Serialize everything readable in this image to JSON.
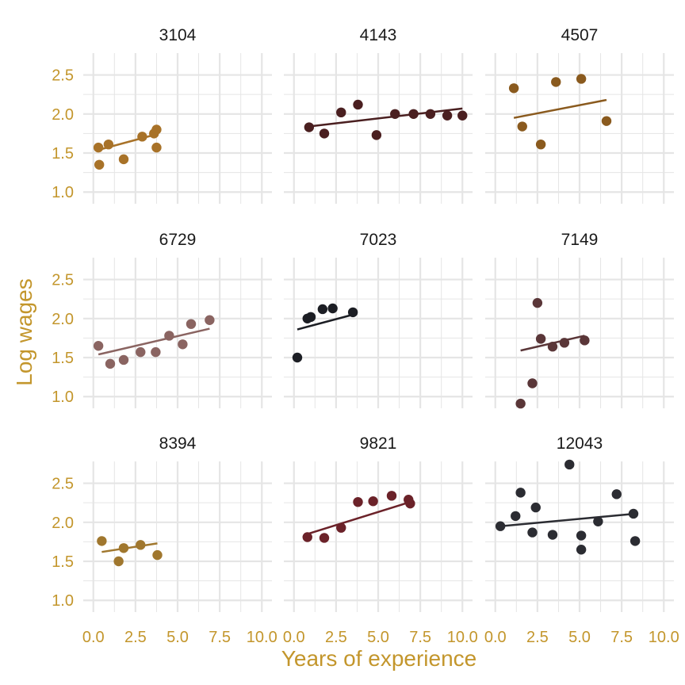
{
  "chart_data": {
    "type": "scatter",
    "xlabel": "Years of experience",
    "ylabel": "Log wages",
    "xlim": [
      -0.6,
      10.6
    ],
    "ylim": [
      0.85,
      2.78
    ],
    "x_ticks": [
      0,
      2.5,
      5,
      7.5,
      10
    ],
    "x_tick_labels": [
      "0.0",
      "2.5",
      "5.0",
      "7.5",
      "10.0"
    ],
    "y_ticks": [
      1,
      1.5,
      2,
      2.5
    ],
    "y_tick_labels": [
      "1.0",
      "1.5",
      "2.0",
      "2.5"
    ],
    "grid": true,
    "axis_text_color": "#c3962c",
    "grid_color": "#e5e5e5",
    "panels": [
      {
        "id": "3104",
        "color": "#a87228",
        "points": [
          [
            0.3,
            1.57
          ],
          [
            0.35,
            1.35
          ],
          [
            0.9,
            1.61
          ],
          [
            1.8,
            1.42
          ],
          [
            2.9,
            1.71
          ],
          [
            3.6,
            1.75
          ],
          [
            3.75,
            1.8
          ],
          [
            3.75,
            1.57
          ]
        ],
        "fit": [
          [
            0.3,
            1.54
          ],
          [
            3.75,
            1.74
          ]
        ]
      },
      {
        "id": "4143",
        "color": "#4a1f20",
        "points": [
          [
            0.9,
            1.83
          ],
          [
            1.8,
            1.75
          ],
          [
            2.8,
            2.02
          ],
          [
            3.8,
            2.12
          ],
          [
            4.9,
            1.73
          ],
          [
            6.0,
            2.0
          ],
          [
            7.1,
            2.0
          ],
          [
            8.1,
            2.0
          ],
          [
            9.1,
            1.98
          ],
          [
            10.0,
            1.98
          ]
        ],
        "fit": [
          [
            0.9,
            1.84
          ],
          [
            10.0,
            2.07
          ]
        ]
      },
      {
        "id": "4507",
        "color": "#8a5a1e",
        "points": [
          [
            1.1,
            2.33
          ],
          [
            1.6,
            1.84
          ],
          [
            2.7,
            1.61
          ],
          [
            3.6,
            2.41
          ],
          [
            5.1,
            2.45
          ],
          [
            6.6,
            1.91
          ]
        ],
        "fit": [
          [
            1.1,
            1.95
          ],
          [
            6.6,
            2.18
          ]
        ]
      },
      {
        "id": "6729",
        "color": "#8a6461",
        "points": [
          [
            0.3,
            1.65
          ],
          [
            1.0,
            1.42
          ],
          [
            1.8,
            1.47
          ],
          [
            2.8,
            1.57
          ],
          [
            3.7,
            1.57
          ],
          [
            4.5,
            1.78
          ],
          [
            5.3,
            1.67
          ],
          [
            5.8,
            1.93
          ],
          [
            6.9,
            1.98
          ]
        ],
        "fit": [
          [
            0.3,
            1.54
          ],
          [
            6.9,
            1.87
          ]
        ]
      },
      {
        "id": "7023",
        "color": "#1c1e24",
        "points": [
          [
            0.2,
            1.5
          ],
          [
            0.8,
            2.0
          ],
          [
            1.0,
            2.02
          ],
          [
            1.7,
            2.12
          ],
          [
            2.3,
            2.13
          ],
          [
            3.5,
            2.08
          ]
        ],
        "fit": [
          [
            0.2,
            1.86
          ],
          [
            3.5,
            2.05
          ]
        ]
      },
      {
        "id": "7149",
        "color": "#5a3638",
        "points": [
          [
            1.5,
            0.91
          ],
          [
            2.2,
            1.17
          ],
          [
            2.5,
            2.2
          ],
          [
            2.7,
            1.74
          ],
          [
            3.4,
            1.64
          ],
          [
            4.1,
            1.69
          ],
          [
            5.3,
            1.72
          ]
        ],
        "fit": [
          [
            1.5,
            1.59
          ],
          [
            5.3,
            1.78
          ]
        ]
      },
      {
        "id": "8394",
        "color": "#a0772e",
        "points": [
          [
            0.5,
            1.76
          ],
          [
            1.5,
            1.5
          ],
          [
            1.8,
            1.67
          ],
          [
            2.8,
            1.71
          ],
          [
            3.8,
            1.58
          ]
        ],
        "fit": [
          [
            0.5,
            1.62
          ],
          [
            3.8,
            1.73
          ]
        ]
      },
      {
        "id": "9821",
        "color": "#6b2229",
        "points": [
          [
            0.8,
            1.81
          ],
          [
            1.8,
            1.8
          ],
          [
            2.8,
            1.93
          ],
          [
            3.8,
            2.26
          ],
          [
            4.7,
            2.27
          ],
          [
            5.8,
            2.34
          ],
          [
            6.8,
            2.29
          ],
          [
            6.9,
            2.24
          ]
        ],
        "fit": [
          [
            0.8,
            1.85
          ],
          [
            6.9,
            2.26
          ]
        ]
      },
      {
        "id": "12043",
        "color": "#2b2c32",
        "points": [
          [
            0.3,
            1.95
          ],
          [
            1.2,
            2.08
          ],
          [
            1.5,
            2.38
          ],
          [
            2.2,
            1.87
          ],
          [
            2.4,
            2.19
          ],
          [
            3.4,
            1.84
          ],
          [
            4.4,
            2.74
          ],
          [
            5.1,
            1.83
          ],
          [
            5.1,
            1.65
          ],
          [
            6.1,
            2.01
          ],
          [
            7.2,
            2.36
          ],
          [
            8.2,
            2.11
          ],
          [
            8.3,
            1.76
          ]
        ],
        "fit": [
          [
            0.3,
            1.95
          ],
          [
            8.3,
            2.11
          ]
        ]
      }
    ]
  }
}
